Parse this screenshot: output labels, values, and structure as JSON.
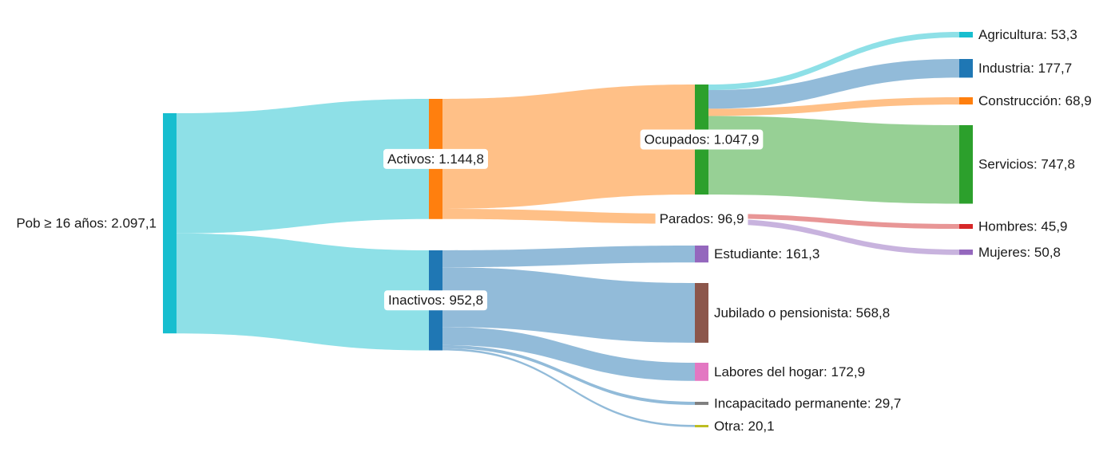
{
  "chart_data": {
    "type": "sankey",
    "nodes": [
      {
        "id": "pob",
        "label": "Pob ≥ 16 años: 2.097,1",
        "value": 2097.1,
        "color": "#17becf"
      },
      {
        "id": "activos",
        "label": "Activos: 1.144,8",
        "value": 1144.8,
        "color": "#ff7f0e"
      },
      {
        "id": "inactivos",
        "label": "Inactivos: 952,8",
        "value": 952.8,
        "color": "#1f77b4"
      },
      {
        "id": "ocupados",
        "label": "Ocupados: 1.047,9",
        "value": 1047.9,
        "color": "#2ca02c"
      },
      {
        "id": "parados",
        "label": "Parados: 96,9",
        "value": 96.9,
        "color": "#ffbb78"
      },
      {
        "id": "estudiante",
        "label": "Estudiante: 161,3",
        "value": 161.3,
        "color": "#9467bd"
      },
      {
        "id": "jubilado",
        "label": "Jubilado o pensionista: 568,8",
        "value": 568.8,
        "color": "#8c564b"
      },
      {
        "id": "labores",
        "label": "Labores del hogar: 172,9",
        "value": 172.9,
        "color": "#e377c2"
      },
      {
        "id": "incapacitado",
        "label": "Incapacitado permanente: 29,7",
        "value": 29.7,
        "color": "#7f7f7f"
      },
      {
        "id": "otra",
        "label": "Otra: 20,1",
        "value": 20.1,
        "color": "#bcbd22"
      },
      {
        "id": "agricultura",
        "label": "Agricultura: 53,3",
        "value": 53.3,
        "color": "#17becf"
      },
      {
        "id": "industria",
        "label": "Industria: 177,7",
        "value": 177.7,
        "color": "#1f77b4"
      },
      {
        "id": "construccion",
        "label": "Construcción: 68,9",
        "value": 68.9,
        "color": "#ff7f0e"
      },
      {
        "id": "servicios",
        "label": "Servicios: 747,8",
        "value": 747.8,
        "color": "#2ca02c"
      },
      {
        "id": "hombres",
        "label": "Hombres: 45,9",
        "value": 45.9,
        "color": "#d62728"
      },
      {
        "id": "mujeres",
        "label": "Mujeres: 50,8",
        "value": 50.8,
        "color": "#9467bd"
      }
    ],
    "links": [
      {
        "source": "pob",
        "target": "activos",
        "value": 1144.8,
        "color": "#8ee0e7"
      },
      {
        "source": "pob",
        "target": "inactivos",
        "value": 952.8,
        "color": "#8ee0e7"
      },
      {
        "source": "activos",
        "target": "ocupados",
        "value": 1047.9,
        "color": "#ffc087"
      },
      {
        "source": "activos",
        "target": "parados",
        "value": 96.9,
        "color": "#ffc087"
      },
      {
        "source": "inactivos",
        "target": "estudiante",
        "value": 161.3,
        "color": "#92bbd9"
      },
      {
        "source": "inactivos",
        "target": "jubilado",
        "value": 568.8,
        "color": "#92bbd9"
      },
      {
        "source": "inactivos",
        "target": "labores",
        "value": 172.9,
        "color": "#92bbd9"
      },
      {
        "source": "inactivos",
        "target": "incapacitado",
        "value": 29.7,
        "color": "#92bbd9"
      },
      {
        "source": "inactivos",
        "target": "otra",
        "value": 20.1,
        "color": "#92bbd9"
      },
      {
        "source": "ocupados",
        "target": "agricultura",
        "value": 53.3,
        "color": "#8ee0e7"
      },
      {
        "source": "ocupados",
        "target": "industria",
        "value": 177.7,
        "color": "#92bbd9"
      },
      {
        "source": "ocupados",
        "target": "construccion",
        "value": 68.9,
        "color": "#ffc087"
      },
      {
        "source": "ocupados",
        "target": "servicios",
        "value": 747.8,
        "color": "#97d095"
      },
      {
        "source": "parados",
        "target": "hombres",
        "value": 45.9,
        "color": "#e89696"
      },
      {
        "source": "parados",
        "target": "mujeres",
        "value": 50.8,
        "color": "#c8b3de"
      }
    ]
  }
}
